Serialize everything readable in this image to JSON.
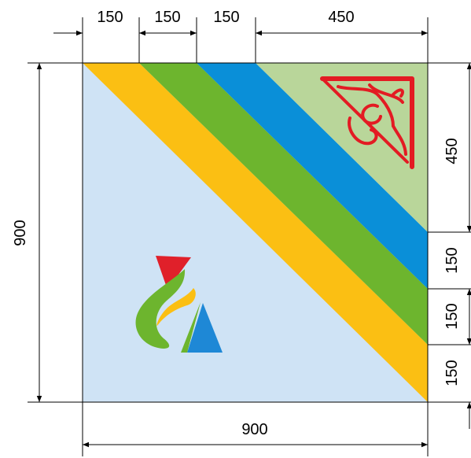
{
  "dimensions": {
    "top_segments": [
      "150",
      "150",
      "150",
      "450"
    ],
    "left_total": "900",
    "right_segments": [
      "450",
      "150",
      "150",
      "150"
    ],
    "bottom_total": "900"
  },
  "colors": {
    "background": "#cfe3f5",
    "yellow": "#fbbf13",
    "green": "#6db52e",
    "blue": "#0a8fd8",
    "light_green": "#b9d69a",
    "ornament_red": "#e31b23",
    "logo_red": "#e0202a",
    "logo_green": "#6db52e",
    "logo_yellow": "#fbbf13",
    "logo_blue": "#1e88d6"
  },
  "icons": {
    "corner_ornament": "corner-ornament-icon",
    "logo": "logo-icon"
  }
}
